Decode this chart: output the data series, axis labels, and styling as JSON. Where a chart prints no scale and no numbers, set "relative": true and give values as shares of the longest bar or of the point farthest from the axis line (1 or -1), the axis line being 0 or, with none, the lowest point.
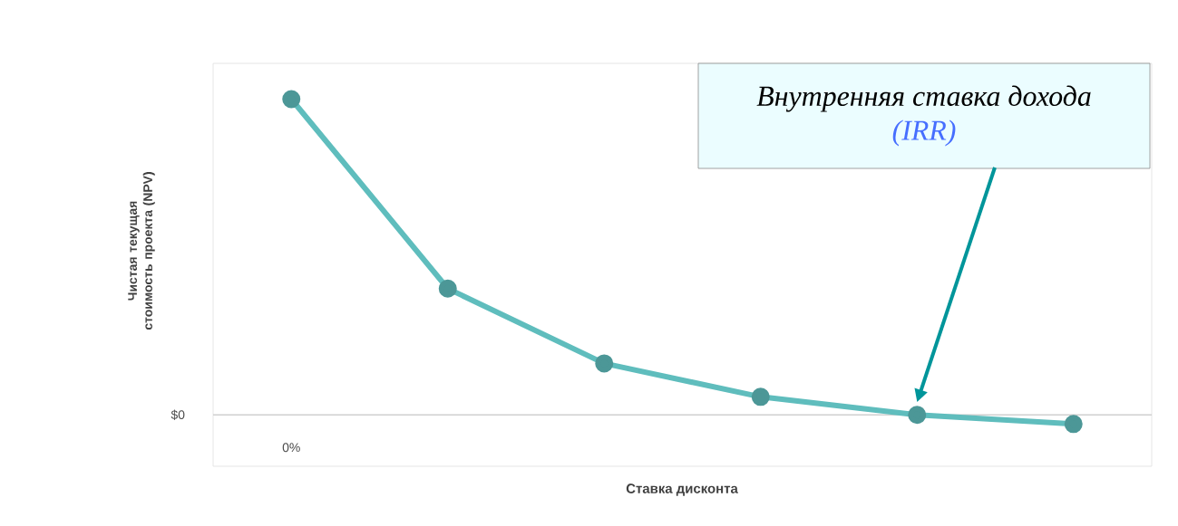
{
  "chart_data": {
    "type": "line",
    "relative": true,
    "marker": "circle",
    "xlabel": "Ставка дисконта",
    "ylabel": "Чистая текущая стоимость проекта (NPV)",
    "categories": [
      null,
      null,
      null,
      null,
      null,
      null
    ],
    "series": [
      {
        "color": "#5fbdbd",
        "values": [
          1,
          0.4,
          0.163,
          0.057,
          0,
          -0.029
        ]
      }
    ],
    "ref_lines": [
      {
        "axis": "y",
        "value": 0,
        "label": "$0",
        "color": "#d0d0d0"
      }
    ],
    "annotations": [
      "Внутренняя ставка дохода",
      "(IRR)",
      "0%"
    ]
  }
}
